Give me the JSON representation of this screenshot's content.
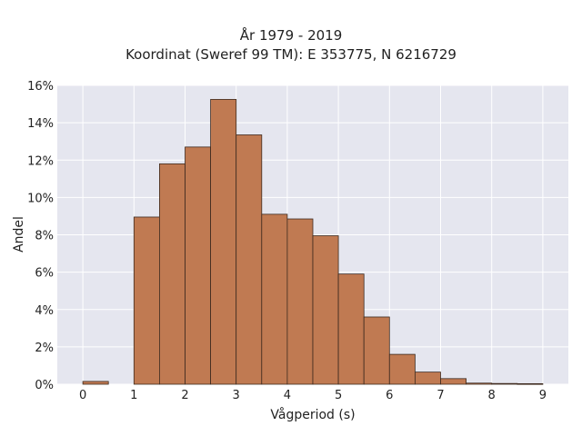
{
  "chart_data": {
    "type": "bar",
    "title": "År 1979 - 2019",
    "subtitle": "Koordinat (Sweref 99 TM): E 353775, N 6216729",
    "xlabel": "Vågperiod (s)",
    "ylabel": "Andel",
    "xlim": [
      -0.5,
      9.5
    ],
    "ylim": [
      0,
      16
    ],
    "x_ticks": [
      0,
      1,
      2,
      3,
      4,
      5,
      6,
      7,
      8,
      9
    ],
    "y_ticks": [
      0,
      2,
      4,
      6,
      8,
      10,
      12,
      14,
      16
    ],
    "y_tick_labels": [
      "0%",
      "2%",
      "4%",
      "6%",
      "8%",
      "10%",
      "12%",
      "14%",
      "16%"
    ],
    "bin_width": 0.5,
    "bins": [
      {
        "start": 0.0,
        "value": 0.15
      },
      {
        "start": 0.5,
        "value": 0.0
      },
      {
        "start": 1.0,
        "value": 8.95
      },
      {
        "start": 1.5,
        "value": 11.8
      },
      {
        "start": 2.0,
        "value": 12.7
      },
      {
        "start": 2.5,
        "value": 15.25
      },
      {
        "start": 3.0,
        "value": 13.35
      },
      {
        "start": 3.5,
        "value": 9.1
      },
      {
        "start": 4.0,
        "value": 8.85
      },
      {
        "start": 4.5,
        "value": 7.95
      },
      {
        "start": 5.0,
        "value": 5.9
      },
      {
        "start": 5.5,
        "value": 3.6
      },
      {
        "start": 6.0,
        "value": 1.6
      },
      {
        "start": 6.5,
        "value": 0.65
      },
      {
        "start": 7.0,
        "value": 0.3
      },
      {
        "start": 7.5,
        "value": 0.06
      },
      {
        "start": 8.0,
        "value": 0.04
      },
      {
        "start": 8.5,
        "value": 0.03
      }
    ],
    "grid": true,
    "colors": {
      "bar_fill": "#c07a52",
      "bar_edge": "#3d2a1f",
      "plot_background": "#e5e6ef",
      "grid_line": "#ffffff"
    }
  }
}
